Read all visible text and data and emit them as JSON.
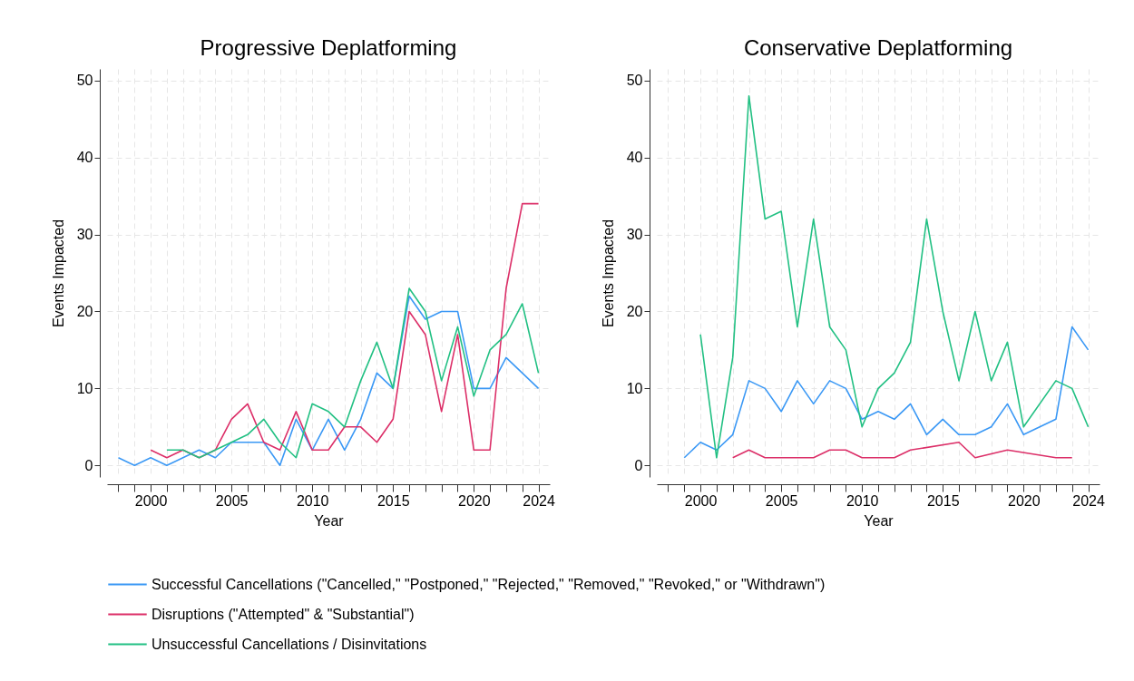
{
  "chart_data": [
    {
      "type": "line",
      "title": "Progressive Deplatforming",
      "xlabel": "Year",
      "ylabel": "Events Impacted",
      "xlim": [
        1997.3,
        2024.7
      ],
      "xticks": [
        {
          "value": 1998,
          "label": null
        },
        {
          "value": 1999,
          "label": null
        },
        2000,
        {
          "value": 2001,
          "label": null
        },
        {
          "value": 2002,
          "label": null
        },
        {
          "value": 2003,
          "label": null
        },
        {
          "value": 2004,
          "label": null
        },
        2005,
        {
          "value": 2006,
          "label": null
        },
        {
          "value": 2007,
          "label": null
        },
        {
          "value": 2008,
          "label": null
        },
        {
          "value": 2009,
          "label": null
        },
        2010,
        {
          "value": 2011,
          "label": null
        },
        {
          "value": 2012,
          "label": null
        },
        {
          "value": 2013,
          "label": null
        },
        {
          "value": 2014,
          "label": null
        },
        2015,
        {
          "value": 2016,
          "label": null
        },
        {
          "value": 2017,
          "label": null
        },
        {
          "value": 2018,
          "label": null
        },
        {
          "value": 2019,
          "label": null
        },
        2020,
        {
          "value": 2021,
          "label": null
        },
        {
          "value": 2022,
          "label": null
        },
        {
          "value": 2023,
          "label": null
        },
        2024
      ],
      "ylim": [
        -1.5,
        51.5
      ],
      "yticks": [
        0,
        10,
        20,
        30,
        40,
        50
      ],
      "grid": true,
      "legend": "bottom",
      "line_style": "solid",
      "marker": "none",
      "series": [
        {
          "name": "Successful Cancellations (\"Cancelled,\" \"Postponed,\" \"Rejected,\" \"Removed,\" \"Revoked,\" or \"Withdrawn\")",
          "color": "#3a98f5",
          "x": [
            1998,
            1999,
            2000,
            2001,
            2002,
            2003,
            2004,
            2005,
            2006,
            2007,
            2008,
            2009,
            2010,
            2011,
            2012,
            2013,
            2014,
            2015,
            2016,
            2017,
            2018,
            2019,
            2020,
            2021,
            2022,
            2023,
            2024
          ],
          "values": [
            1,
            0,
            1,
            0,
            1,
            2,
            1,
            3,
            3,
            3,
            0,
            6,
            2,
            6,
            2,
            6,
            12,
            10,
            22,
            19,
            20,
            20,
            10,
            10,
            14,
            12,
            10
          ]
        },
        {
          "name": "Disruptions (\"Attempted\" & \"Substantial\")",
          "color": "#dc2f68",
          "x": [
            2000,
            2001,
            2002,
            2003,
            2004,
            2005,
            2006,
            2007,
            2008,
            2009,
            2010,
            2011,
            2012,
            2013,
            2014,
            2015,
            2016,
            2017,
            2018,
            2019,
            2020,
            2021,
            2022,
            2023,
            2024
          ],
          "values": [
            2,
            1,
            2,
            1,
            2,
            6,
            8,
            3,
            2,
            7,
            2,
            2,
            5,
            5,
            3,
            6,
            20,
            17,
            7,
            17,
            2,
            2,
            23,
            34,
            34
          ]
        },
        {
          "name": "Unsuccessful Cancellations / Disinvitations",
          "color": "#22c083",
          "x": [
            2001,
            2002,
            2003,
            2004,
            2005,
            2006,
            2007,
            2008,
            2009,
            2010,
            2011,
            2012,
            2013,
            2014,
            2015,
            2016,
            2017,
            2018,
            2019,
            2020,
            2021,
            2022,
            2023,
            2024
          ],
          "values": [
            2,
            2,
            1,
            2,
            3,
            4,
            6,
            3,
            1,
            8,
            7,
            5,
            11,
            16,
            10,
            23,
            20,
            11,
            18,
            9,
            15,
            17,
            21,
            12
          ]
        }
      ]
    },
    {
      "type": "line",
      "title": "Conservative Deplatforming",
      "xlabel": "Year",
      "ylabel": "Events Impacted",
      "xlim": [
        1997.3,
        2024.7
      ],
      "xticks": [
        {
          "value": 1998,
          "label": null
        },
        {
          "value": 1999,
          "label": null
        },
        2000,
        {
          "value": 2001,
          "label": null
        },
        {
          "value": 2002,
          "label": null
        },
        {
          "value": 2003,
          "label": null
        },
        {
          "value": 2004,
          "label": null
        },
        2005,
        {
          "value": 2006,
          "label": null
        },
        {
          "value": 2007,
          "label": null
        },
        {
          "value": 2008,
          "label": null
        },
        {
          "value": 2009,
          "label": null
        },
        2010,
        {
          "value": 2011,
          "label": null
        },
        {
          "value": 2012,
          "label": null
        },
        {
          "value": 2013,
          "label": null
        },
        {
          "value": 2014,
          "label": null
        },
        2015,
        {
          "value": 2016,
          "label": null
        },
        {
          "value": 2017,
          "label": null
        },
        {
          "value": 2018,
          "label": null
        },
        {
          "value": 2019,
          "label": null
        },
        2020,
        {
          "value": 2021,
          "label": null
        },
        {
          "value": 2022,
          "label": null
        },
        {
          "value": 2023,
          "label": null
        },
        2024
      ],
      "ylim": [
        -1.5,
        51.5
      ],
      "yticks": [
        0,
        10,
        20,
        30,
        40,
        50
      ],
      "grid": true,
      "legend": "bottom",
      "line_style": "solid",
      "marker": "none",
      "series": [
        {
          "name": "Successful Cancellations (\"Cancelled,\" \"Postponed,\" \"Rejected,\" \"Removed,\" \"Revoked,\" or \"Withdrawn\")",
          "color": "#3a98f5",
          "x": [
            1999,
            2000,
            2001,
            2002,
            2003,
            2004,
            2005,
            2006,
            2007,
            2008,
            2009,
            2010,
            2011,
            2012,
            2013,
            2014,
            2015,
            2016,
            2017,
            2018,
            2019,
            2020,
            2022,
            2023,
            2024
          ],
          "values": [
            1,
            3,
            2,
            4,
            11,
            10,
            7,
            11,
            8,
            11,
            10,
            6,
            7,
            6,
            8,
            4,
            6,
            4,
            4,
            5,
            8,
            4,
            6,
            18,
            15
          ]
        },
        {
          "name": "Disruptions (\"Attempted\" & \"Substantial\")",
          "color": "#dc2f68",
          "x": [
            2002,
            2003,
            2004,
            2005,
            2006,
            2007,
            2008,
            2009,
            2010,
            2011,
            2012,
            2013,
            2016,
            2017,
            2019,
            2022,
            2023
          ],
          "values": [
            1,
            2,
            1,
            1,
            1,
            1,
            2,
            2,
            1,
            1,
            1,
            2,
            3,
            1,
            2,
            1,
            1
          ]
        },
        {
          "name": "Unsuccessful Cancellations / Disinvitations",
          "color": "#22c083",
          "x": [
            2000,
            2001,
            2002,
            2003,
            2004,
            2005,
            2006,
            2007,
            2008,
            2009,
            2010,
            2011,
            2012,
            2013,
            2014,
            2015,
            2016,
            2017,
            2018,
            2019,
            2020,
            2022,
            2023,
            2024
          ],
          "values": [
            17,
            1,
            14,
            48,
            32,
            33,
            18,
            32,
            18,
            15,
            5,
            10,
            12,
            16,
            32,
            20,
            11,
            20,
            11,
            16,
            5,
            11,
            10,
            5
          ]
        }
      ]
    }
  ]
}
